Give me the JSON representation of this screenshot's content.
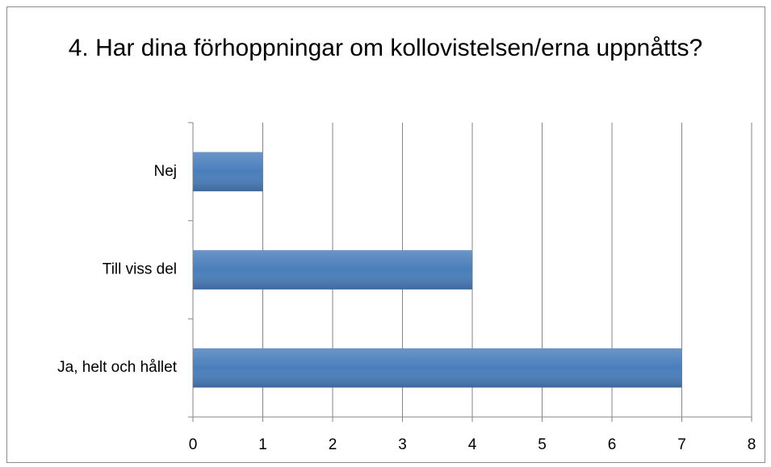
{
  "chart_data": {
    "type": "bar",
    "orientation": "horizontal",
    "title": "4. Har dina förhoppningar om kollovistelsen/erna uppnåtts?",
    "categories": [
      "Nej",
      "Till viss del",
      "Ja, helt och hållet"
    ],
    "values": [
      1,
      4,
      7
    ],
    "color": "#4a7ebb",
    "xlim": [
      0,
      8
    ],
    "xticks": [
      0,
      1,
      2,
      3,
      4,
      5,
      6,
      7,
      8
    ],
    "grid": true
  }
}
